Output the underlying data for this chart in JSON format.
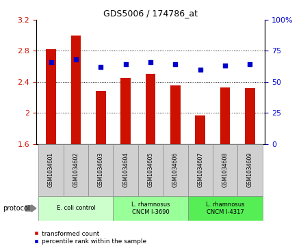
{
  "title": "GDS5006 / 174786_at",
  "samples": [
    "GSM1034601",
    "GSM1034602",
    "GSM1034603",
    "GSM1034604",
    "GSM1034605",
    "GSM1034606",
    "GSM1034607",
    "GSM1034608",
    "GSM1034609"
  ],
  "transformed_count": [
    2.82,
    3.0,
    2.28,
    2.45,
    2.5,
    2.35,
    1.97,
    2.33,
    2.32
  ],
  "percentile_rank": [
    66,
    68,
    62,
    64,
    66,
    64,
    60,
    63,
    64
  ],
  "ylim_left": [
    1.6,
    3.2
  ],
  "ylim_right": [
    0,
    100
  ],
  "yticks_left": [
    1.6,
    2.0,
    2.4,
    2.8,
    3.2
  ],
  "yticks_right": [
    0,
    25,
    50,
    75,
    100
  ],
  "ytick_labels_left": [
    "1.6",
    "2",
    "2.4",
    "2.8",
    "3.2"
  ],
  "ytick_labels_right": [
    "0",
    "25",
    "50",
    "75",
    "100%"
  ],
  "bar_color": "#cc1100",
  "dot_color": "#0000cc",
  "protocols": [
    {
      "label": "E. coli control",
      "start": 0,
      "end": 3,
      "color": "#ccffcc"
    },
    {
      "label": "L. rhamnosus\nCNCM I-3690",
      "start": 3,
      "end": 6,
      "color": "#99ff99"
    },
    {
      "label": "L. rhamnosus\nCNCM I-4317",
      "start": 6,
      "end": 9,
      "color": "#55ee55"
    }
  ],
  "legend_bar_label": "transformed count",
  "legend_dot_label": "percentile rank within the sample",
  "protocol_label": "protocol",
  "bg_color_plot": "#ffffff",
  "sample_cell_color": "#d0d0d0",
  "grid_yticks": [
    2.0,
    2.4,
    2.8
  ]
}
